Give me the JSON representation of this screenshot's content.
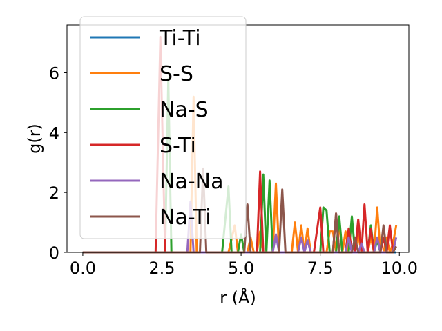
{
  "chart_data": {
    "type": "line",
    "xlabel": "r (Å)",
    "ylabel": "g(r)",
    "xlim": [
      -0.5,
      10.3
    ],
    "ylim": [
      0,
      7.6
    ],
    "xticks": [
      0.0,
      2.5,
      5.0,
      7.5,
      10.0
    ],
    "xtick_labels": [
      "0.0",
      "2.5",
      "5.0",
      "7.5",
      "10.0"
    ],
    "yticks": [
      0,
      2,
      4,
      6
    ],
    "ytick_labels": [
      "0",
      "2",
      "4",
      "6"
    ],
    "grid": false,
    "legend_position": "upper-left",
    "series": [
      {
        "name": "Ti-Ti",
        "color": "#1f77b4",
        "points": [
          [
            0,
            0
          ],
          [
            9.9,
            0
          ]
        ]
      },
      {
        "name": "S-S",
        "color": "#ff7f0e",
        "points": [
          [
            0,
            0
          ],
          [
            3.4,
            0
          ],
          [
            3.5,
            5.2
          ],
          [
            3.6,
            0
          ],
          [
            4.6,
            0
          ],
          [
            4.8,
            0.9
          ],
          [
            4.9,
            0
          ],
          [
            5.2,
            0
          ],
          [
            5.3,
            0.5
          ],
          [
            5.4,
            0
          ],
          [
            5.5,
            0
          ],
          [
            5.6,
            0.7
          ],
          [
            5.7,
            0
          ],
          [
            6.0,
            0
          ],
          [
            6.1,
            2.3
          ],
          [
            6.2,
            0
          ],
          [
            6.6,
            0
          ],
          [
            6.7,
            1.0
          ],
          [
            6.8,
            0
          ],
          [
            6.9,
            0.9
          ],
          [
            7.0,
            0
          ],
          [
            7.1,
            0.8
          ],
          [
            7.2,
            0
          ],
          [
            7.7,
            0
          ],
          [
            7.8,
            0.7
          ],
          [
            7.9,
            0.7
          ],
          [
            8.0,
            0
          ],
          [
            8.1,
            0.9
          ],
          [
            8.2,
            0
          ],
          [
            8.3,
            0.7
          ],
          [
            8.4,
            0
          ],
          [
            8.6,
            0
          ],
          [
            8.7,
            0.6
          ],
          [
            8.8,
            0
          ],
          [
            9.0,
            0
          ],
          [
            9.1,
            0.5
          ],
          [
            9.2,
            0
          ],
          [
            9.3,
            1.5
          ],
          [
            9.4,
            0
          ],
          [
            9.5,
            0
          ],
          [
            9.6,
            0.5
          ],
          [
            9.7,
            0
          ],
          [
            9.8,
            0.3
          ],
          [
            9.9,
            0.9
          ]
        ]
      },
      {
        "name": "Na-S",
        "color": "#2ca02c",
        "points": [
          [
            0,
            0
          ],
          [
            2.6,
            0
          ],
          [
            2.7,
            5.8
          ],
          [
            2.8,
            0
          ],
          [
            4.4,
            0
          ],
          [
            4.6,
            2.2
          ],
          [
            4.7,
            0
          ],
          [
            4.9,
            0
          ],
          [
            5.0,
            0.6
          ],
          [
            5.1,
            0
          ],
          [
            5.6,
            0
          ],
          [
            5.7,
            2.6
          ],
          [
            5.8,
            0
          ],
          [
            5.9,
            2.4
          ],
          [
            6.0,
            0
          ],
          [
            7.5,
            0
          ],
          [
            7.6,
            1.5
          ],
          [
            7.7,
            1.4
          ],
          [
            7.8,
            0
          ],
          [
            8.0,
            0
          ],
          [
            8.1,
            1.2
          ],
          [
            8.2,
            0
          ],
          [
            8.4,
            0
          ],
          [
            8.5,
            1.2
          ],
          [
            8.6,
            0
          ],
          [
            9.0,
            0
          ],
          [
            9.1,
            0.9
          ],
          [
            9.2,
            0
          ],
          [
            9.3,
            0.4
          ],
          [
            9.4,
            0
          ]
        ]
      },
      {
        "name": "S-Ti",
        "color": "#d62728",
        "points": [
          [
            0,
            0
          ],
          [
            2.3,
            0
          ],
          [
            2.45,
            7.2
          ],
          [
            2.6,
            0
          ],
          [
            5.5,
            0
          ],
          [
            5.6,
            2.7
          ],
          [
            5.7,
            0
          ],
          [
            7.3,
            0
          ],
          [
            7.5,
            1.5
          ],
          [
            7.6,
            0
          ],
          [
            7.9,
            0
          ],
          [
            8.0,
            1.3
          ],
          [
            8.1,
            0
          ],
          [
            8.3,
            0
          ],
          [
            8.4,
            0.8
          ],
          [
            8.5,
            0
          ],
          [
            8.6,
            0
          ],
          [
            8.7,
            1.1
          ],
          [
            8.8,
            0
          ],
          [
            8.9,
            1.6
          ],
          [
            9.0,
            0
          ],
          [
            9.1,
            0.8
          ],
          [
            9.2,
            0
          ],
          [
            9.4,
            0
          ],
          [
            9.5,
            0.5
          ],
          [
            9.6,
            0
          ],
          [
            9.7,
            0.9
          ],
          [
            9.8,
            0
          ]
        ]
      },
      {
        "name": "Na-Na",
        "color": "#9467bd",
        "points": [
          [
            0,
            0
          ],
          [
            3.3,
            0
          ],
          [
            3.4,
            1.7
          ],
          [
            3.5,
            0
          ],
          [
            6.0,
            0
          ],
          [
            6.1,
            0.6
          ],
          [
            6.2,
            0
          ],
          [
            6.8,
            0
          ],
          [
            6.9,
            0.5
          ],
          [
            7.0,
            0
          ],
          [
            7.1,
            0.4
          ],
          [
            7.2,
            0
          ],
          [
            8.3,
            0
          ],
          [
            8.4,
            0.5
          ],
          [
            8.5,
            0
          ],
          [
            8.7,
            0
          ],
          [
            8.8,
            0.3
          ],
          [
            8.9,
            0
          ],
          [
            9.2,
            0
          ],
          [
            9.3,
            0.5
          ],
          [
            9.4,
            0
          ],
          [
            9.8,
            0
          ],
          [
            9.9,
            0.5
          ]
        ]
      },
      {
        "name": "Na-Ti",
        "color": "#8c564b",
        "points": [
          [
            0,
            0
          ],
          [
            3.7,
            0
          ],
          [
            3.8,
            2.8
          ],
          [
            3.9,
            0
          ],
          [
            5.1,
            0
          ],
          [
            5.2,
            1.6
          ],
          [
            5.3,
            0
          ],
          [
            6.2,
            0
          ],
          [
            6.3,
            2.1
          ],
          [
            6.4,
            0
          ],
          [
            7.9,
            0
          ],
          [
            8.0,
            1.3
          ],
          [
            8.1,
            0
          ],
          [
            8.5,
            0
          ],
          [
            8.6,
            0.5
          ],
          [
            8.7,
            0
          ],
          [
            9.4,
            0
          ],
          [
            9.5,
            0.9
          ],
          [
            9.6,
            0
          ],
          [
            9.8,
            0
          ],
          [
            9.9,
            0.2
          ]
        ]
      }
    ]
  }
}
